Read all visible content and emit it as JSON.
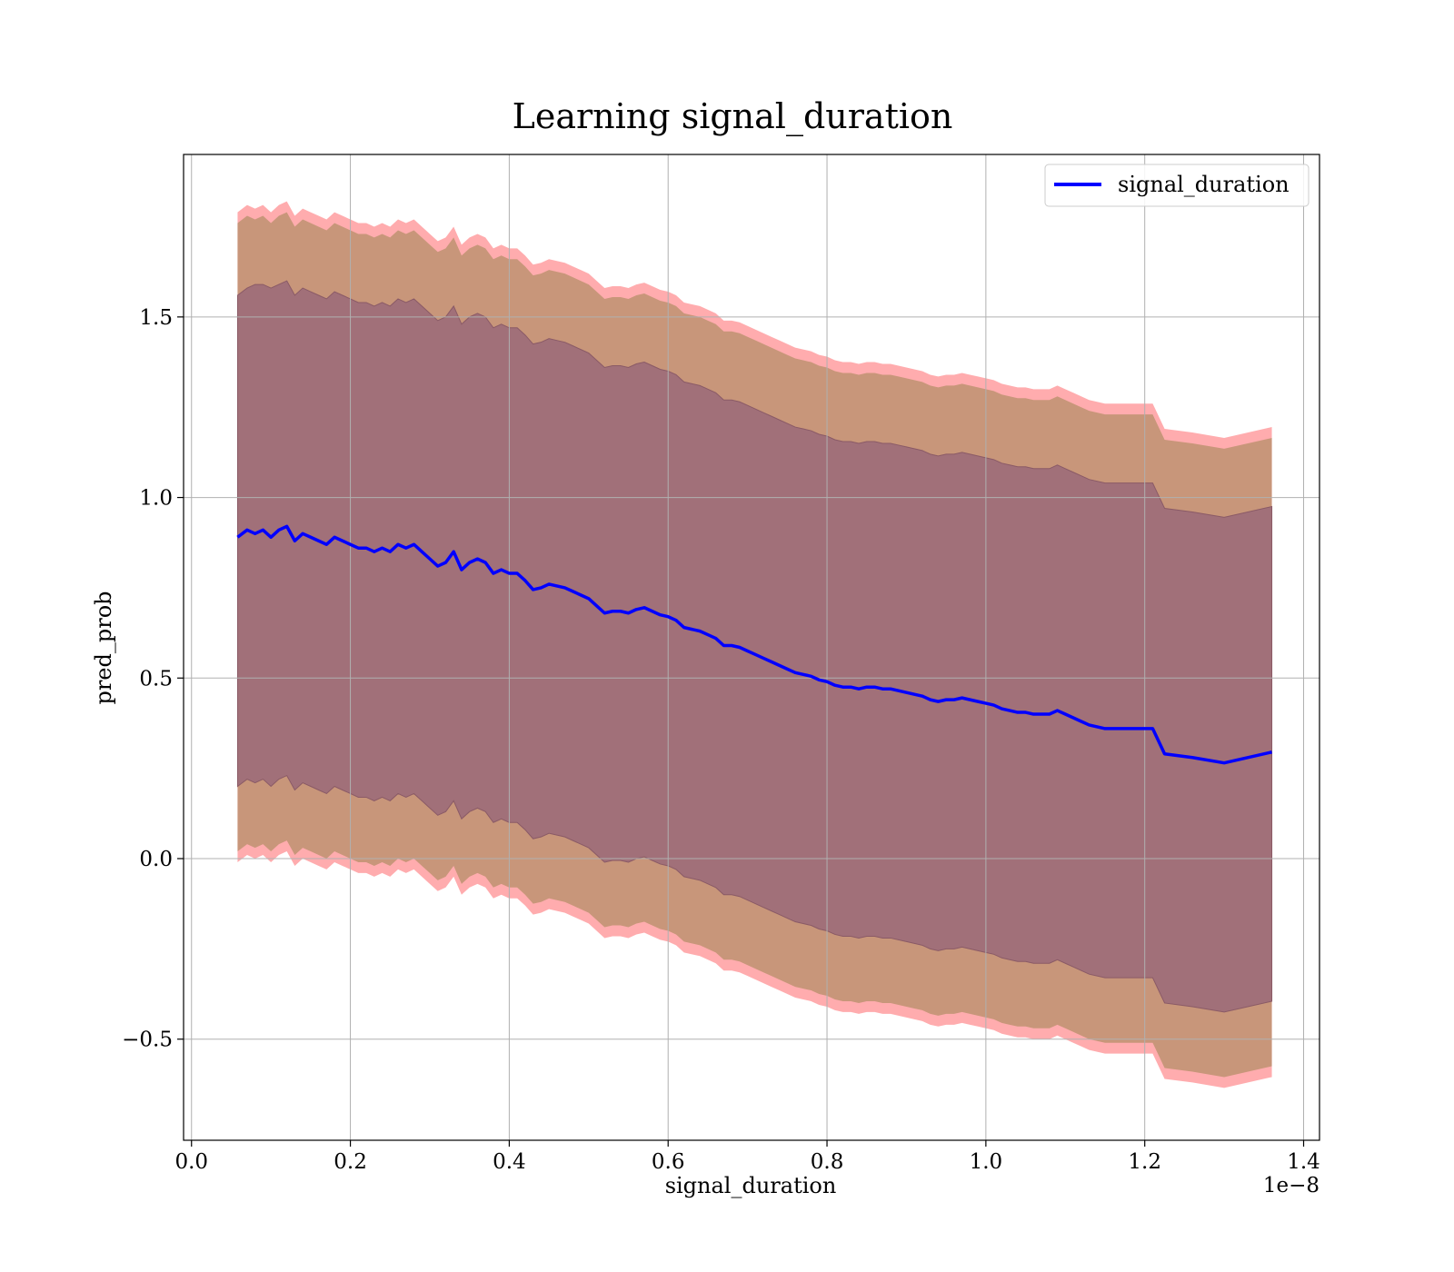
{
  "chart_data": {
    "type": "line",
    "title": "Learning signal_duration",
    "xlabel": "signal_duration",
    "ylabel": "pred_prob",
    "x_offset_label": "1e−8",
    "xlim": [
      -0.01,
      1.42
    ],
    "ylim": [
      -0.78,
      1.95
    ],
    "grid": true,
    "legend_position": "top-right",
    "x_ticks": [
      {
        "value": 0.0,
        "label": "0.0"
      },
      {
        "value": 0.2,
        "label": "0.2"
      },
      {
        "value": 0.4,
        "label": "0.4"
      },
      {
        "value": 0.6,
        "label": "0.6"
      },
      {
        "value": 0.8,
        "label": "0.8"
      },
      {
        "value": 1.0,
        "label": "1.0"
      },
      {
        "value": 1.2,
        "label": "1.2"
      },
      {
        "value": 1.4,
        "label": "1.4"
      }
    ],
    "y_ticks": [
      {
        "value": -0.5,
        "label": "−0.5"
      },
      {
        "value": 0.0,
        "label": "0.0"
      },
      {
        "value": 0.5,
        "label": "0.5"
      },
      {
        "value": 1.0,
        "label": "1.0"
      },
      {
        "value": 1.5,
        "label": "1.5"
      }
    ],
    "series": [
      {
        "name": "signal_duration",
        "color": "#0000ff",
        "x": [
          0.058,
          0.07,
          0.08,
          0.09,
          0.1,
          0.11,
          0.12,
          0.13,
          0.14,
          0.15,
          0.16,
          0.17,
          0.18,
          0.19,
          0.2,
          0.21,
          0.22,
          0.23,
          0.24,
          0.25,
          0.26,
          0.27,
          0.28,
          0.29,
          0.3,
          0.31,
          0.32,
          0.33,
          0.34,
          0.35,
          0.36,
          0.37,
          0.38,
          0.39,
          0.4,
          0.41,
          0.42,
          0.43,
          0.44,
          0.45,
          0.46,
          0.47,
          0.48,
          0.49,
          0.5,
          0.51,
          0.52,
          0.53,
          0.54,
          0.55,
          0.56,
          0.57,
          0.58,
          0.59,
          0.6,
          0.61,
          0.62,
          0.63,
          0.64,
          0.65,
          0.66,
          0.67,
          0.68,
          0.69,
          0.7,
          0.71,
          0.72,
          0.73,
          0.74,
          0.75,
          0.76,
          0.77,
          0.78,
          0.79,
          0.8,
          0.81,
          0.82,
          0.83,
          0.84,
          0.85,
          0.86,
          0.87,
          0.88,
          0.89,
          0.9,
          0.91,
          0.92,
          0.93,
          0.94,
          0.95,
          0.96,
          0.97,
          0.98,
          0.99,
          1.0,
          1.01,
          1.02,
          1.03,
          1.04,
          1.05,
          1.06,
          1.07,
          1.08,
          1.09,
          1.1,
          1.11,
          1.12,
          1.13,
          1.15,
          1.18,
          1.21,
          1.225,
          1.26,
          1.3,
          1.36
        ],
        "y": [
          0.89,
          0.91,
          0.9,
          0.91,
          0.89,
          0.91,
          0.92,
          0.88,
          0.9,
          0.89,
          0.88,
          0.87,
          0.89,
          0.88,
          0.87,
          0.86,
          0.86,
          0.85,
          0.86,
          0.85,
          0.87,
          0.86,
          0.87,
          0.85,
          0.83,
          0.81,
          0.82,
          0.85,
          0.8,
          0.82,
          0.83,
          0.82,
          0.79,
          0.8,
          0.79,
          0.79,
          0.77,
          0.745,
          0.75,
          0.76,
          0.755,
          0.75,
          0.74,
          0.73,
          0.72,
          0.7,
          0.68,
          0.685,
          0.685,
          0.68,
          0.69,
          0.695,
          0.685,
          0.675,
          0.67,
          0.66,
          0.64,
          0.635,
          0.63,
          0.62,
          0.61,
          0.59,
          0.59,
          0.585,
          0.575,
          0.565,
          0.555,
          0.545,
          0.535,
          0.525,
          0.515,
          0.51,
          0.505,
          0.495,
          0.49,
          0.48,
          0.475,
          0.475,
          0.47,
          0.475,
          0.475,
          0.47,
          0.47,
          0.465,
          0.46,
          0.455,
          0.45,
          0.44,
          0.435,
          0.44,
          0.44,
          0.445,
          0.44,
          0.435,
          0.43,
          0.425,
          0.415,
          0.41,
          0.405,
          0.405,
          0.4,
          0.4,
          0.4,
          0.41,
          0.4,
          0.39,
          0.38,
          0.37,
          0.36,
          0.36,
          0.36,
          0.29,
          0.28,
          0.265,
          0.295
        ],
        "upper_inner": [
          1.56,
          1.58,
          1.59,
          1.59,
          1.58,
          1.59,
          1.6,
          1.56,
          1.58,
          1.57,
          1.56,
          1.55,
          1.57,
          1.56,
          1.55,
          1.54,
          1.54,
          1.53,
          1.54,
          1.53,
          1.55,
          1.54,
          1.55,
          1.53,
          1.51,
          1.49,
          1.5,
          1.53,
          1.48,
          1.5,
          1.51,
          1.5,
          1.47,
          1.48,
          1.47,
          1.47,
          1.45,
          1.425,
          1.43,
          1.44,
          1.435,
          1.43,
          1.42,
          1.41,
          1.4,
          1.38,
          1.36,
          1.365,
          1.365,
          1.36,
          1.37,
          1.375,
          1.365,
          1.355,
          1.35,
          1.34,
          1.32,
          1.315,
          1.31,
          1.3,
          1.29,
          1.27,
          1.27,
          1.265,
          1.255,
          1.245,
          1.235,
          1.225,
          1.215,
          1.205,
          1.195,
          1.19,
          1.185,
          1.175,
          1.17,
          1.16,
          1.155,
          1.155,
          1.15,
          1.155,
          1.155,
          1.15,
          1.15,
          1.145,
          1.14,
          1.135,
          1.13,
          1.12,
          1.115,
          1.12,
          1.12,
          1.125,
          1.12,
          1.115,
          1.11,
          1.105,
          1.095,
          1.09,
          1.085,
          1.085,
          1.08,
          1.08,
          1.08,
          1.09,
          1.08,
          1.07,
          1.06,
          1.05,
          1.04,
          1.04,
          1.04,
          0.97,
          0.96,
          0.945,
          0.975
        ],
        "lower_inner": [
          0.2,
          0.22,
          0.21,
          0.22,
          0.2,
          0.22,
          0.23,
          0.19,
          0.21,
          0.2,
          0.19,
          0.18,
          0.2,
          0.19,
          0.18,
          0.17,
          0.17,
          0.16,
          0.17,
          0.16,
          0.18,
          0.17,
          0.18,
          0.16,
          0.14,
          0.12,
          0.13,
          0.16,
          0.11,
          0.13,
          0.14,
          0.13,
          0.1,
          0.11,
          0.1,
          0.1,
          0.08,
          0.055,
          0.06,
          0.07,
          0.065,
          0.06,
          0.05,
          0.04,
          0.03,
          0.01,
          -0.01,
          -0.005,
          -0.005,
          -0.01,
          0.0,
          0.005,
          -0.005,
          -0.015,
          -0.02,
          -0.03,
          -0.05,
          -0.055,
          -0.06,
          -0.07,
          -0.08,
          -0.1,
          -0.1,
          -0.105,
          -0.115,
          -0.125,
          -0.135,
          -0.145,
          -0.155,
          -0.165,
          -0.175,
          -0.18,
          -0.185,
          -0.195,
          -0.2,
          -0.21,
          -0.215,
          -0.215,
          -0.22,
          -0.215,
          -0.215,
          -0.22,
          -0.22,
          -0.225,
          -0.23,
          -0.235,
          -0.24,
          -0.25,
          -0.255,
          -0.25,
          -0.25,
          -0.245,
          -0.25,
          -0.255,
          -0.26,
          -0.265,
          -0.275,
          -0.28,
          -0.285,
          -0.285,
          -0.29,
          -0.29,
          -0.29,
          -0.28,
          -0.29,
          -0.3,
          -0.31,
          -0.32,
          -0.33,
          -0.33,
          -0.33,
          -0.4,
          -0.41,
          -0.425,
          -0.395
        ],
        "upper_outer": [
          1.79,
          1.81,
          1.8,
          1.81,
          1.79,
          1.81,
          1.82,
          1.78,
          1.8,
          1.79,
          1.78,
          1.77,
          1.79,
          1.78,
          1.77,
          1.76,
          1.76,
          1.75,
          1.76,
          1.75,
          1.77,
          1.76,
          1.77,
          1.75,
          1.73,
          1.71,
          1.72,
          1.75,
          1.7,
          1.72,
          1.73,
          1.72,
          1.69,
          1.7,
          1.69,
          1.69,
          1.67,
          1.645,
          1.65,
          1.66,
          1.655,
          1.65,
          1.64,
          1.63,
          1.62,
          1.6,
          1.58,
          1.585,
          1.585,
          1.58,
          1.59,
          1.595,
          1.585,
          1.575,
          1.57,
          1.56,
          1.54,
          1.535,
          1.53,
          1.52,
          1.51,
          1.49,
          1.49,
          1.485,
          1.475,
          1.465,
          1.455,
          1.445,
          1.435,
          1.425,
          1.415,
          1.41,
          1.405,
          1.395,
          1.39,
          1.38,
          1.375,
          1.375,
          1.37,
          1.375,
          1.375,
          1.37,
          1.37,
          1.365,
          1.36,
          1.355,
          1.35,
          1.34,
          1.335,
          1.34,
          1.34,
          1.345,
          1.34,
          1.335,
          1.33,
          1.325,
          1.315,
          1.31,
          1.305,
          1.305,
          1.3,
          1.3,
          1.3,
          1.31,
          1.3,
          1.29,
          1.28,
          1.27,
          1.26,
          1.26,
          1.26,
          1.19,
          1.18,
          1.165,
          1.195
        ],
        "lower_outer": [
          -0.01,
          0.01,
          0.0,
          0.01,
          -0.01,
          0.01,
          0.02,
          -0.02,
          0.0,
          -0.01,
          -0.02,
          -0.03,
          -0.01,
          -0.02,
          -0.03,
          -0.04,
          -0.04,
          -0.05,
          -0.04,
          -0.05,
          -0.03,
          -0.04,
          -0.03,
          -0.05,
          -0.07,
          -0.09,
          -0.08,
          -0.05,
          -0.1,
          -0.08,
          -0.07,
          -0.08,
          -0.11,
          -0.1,
          -0.11,
          -0.11,
          -0.13,
          -0.155,
          -0.15,
          -0.14,
          -0.145,
          -0.15,
          -0.16,
          -0.17,
          -0.18,
          -0.2,
          -0.22,
          -0.215,
          -0.215,
          -0.22,
          -0.21,
          -0.205,
          -0.215,
          -0.225,
          -0.23,
          -0.24,
          -0.26,
          -0.265,
          -0.27,
          -0.28,
          -0.29,
          -0.31,
          -0.31,
          -0.315,
          -0.325,
          -0.335,
          -0.345,
          -0.355,
          -0.365,
          -0.375,
          -0.385,
          -0.39,
          -0.395,
          -0.405,
          -0.41,
          -0.42,
          -0.425,
          -0.425,
          -0.43,
          -0.425,
          -0.425,
          -0.43,
          -0.43,
          -0.435,
          -0.44,
          -0.445,
          -0.45,
          -0.46,
          -0.465,
          -0.46,
          -0.46,
          -0.455,
          -0.46,
          -0.465,
          -0.47,
          -0.475,
          -0.485,
          -0.49,
          -0.495,
          -0.495,
          -0.5,
          -0.5,
          -0.5,
          -0.49,
          -0.5,
          -0.51,
          -0.52,
          -0.53,
          -0.54,
          -0.54,
          -0.54,
          -0.61,
          -0.62,
          -0.635,
          -0.605
        ]
      }
    ],
    "colors": {
      "line": "#0000ff",
      "band_outer_edge": "#ff9da0",
      "band_outer": "#c8967a",
      "band_inner": "#a17079",
      "grid": "#b0b0b0"
    }
  }
}
